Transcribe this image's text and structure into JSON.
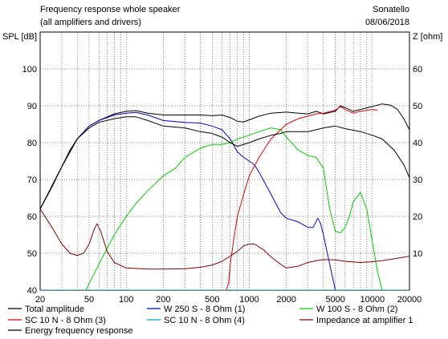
{
  "chart_data": {
    "type": "line",
    "title": "Frequency response whole speaker",
    "subtitle": "(all amplifiers and drivers)",
    "brand": "Sonatello",
    "date": "08/06/2018",
    "ylabel_left": "SPL [dB]",
    "ylabel_right": "Z [ohm]",
    "xscale": "log",
    "xlim": [
      20,
      20000
    ],
    "ylim_left": [
      40,
      110
    ],
    "ylim_right": [
      0,
      70
    ],
    "grid": true,
    "legend_placement": "bottom",
    "x_ticks": [
      20,
      50,
      100,
      200,
      500,
      1000,
      2000,
      5000,
      10000,
      20000
    ],
    "x_minor": [
      30,
      40,
      60,
      70,
      80,
      90,
      300,
      400,
      600,
      700,
      800,
      900,
      3000,
      4000,
      6000,
      7000,
      8000,
      9000
    ],
    "x_tick_labels": [
      "20",
      "50",
      "100",
      "200",
      "500",
      "1000",
      "2000",
      "5000",
      "10000",
      "20000"
    ],
    "y_ticks_left": [
      40,
      50,
      60,
      70,
      80,
      90,
      100
    ],
    "y_tick_labels_left": [
      "40",
      "50",
      "60",
      "70",
      "80",
      "90",
      "100"
    ],
    "y_ticks_right": [
      10,
      20,
      30,
      40,
      50,
      60
    ],
    "y_tick_labels_right": [
      "10",
      "20",
      "30",
      "40",
      "50",
      "60"
    ],
    "series": [
      {
        "name": "Total amplitude",
        "color": "#000000",
        "axis": "left",
        "points": [
          [
            20,
            62
          ],
          [
            25,
            68
          ],
          [
            30,
            73.5
          ],
          [
            35,
            78
          ],
          [
            40,
            81
          ],
          [
            50,
            84.5
          ],
          [
            60,
            86
          ],
          [
            70,
            87
          ],
          [
            80,
            87.8
          ],
          [
            100,
            88.5
          ],
          [
            120,
            88.7
          ],
          [
            150,
            88
          ],
          [
            200,
            87.5
          ],
          [
            300,
            87.5
          ],
          [
            400,
            87.5
          ],
          [
            500,
            87.3
          ],
          [
            600,
            87.5
          ],
          [
            700,
            86.8
          ],
          [
            800,
            85.8
          ],
          [
            900,
            85.6
          ],
          [
            1000,
            86.2
          ],
          [
            1200,
            87.2
          ],
          [
            1500,
            88
          ],
          [
            2000,
            88.3
          ],
          [
            2500,
            88
          ],
          [
            3000,
            87.8
          ],
          [
            3500,
            88.5
          ],
          [
            4000,
            87.8
          ],
          [
            5000,
            88.5
          ],
          [
            5500,
            90
          ],
          [
            6000,
            89.5
          ],
          [
            7000,
            88.5
          ],
          [
            8000,
            89
          ],
          [
            10000,
            89.8
          ],
          [
            12000,
            90.5
          ],
          [
            14000,
            90.2
          ],
          [
            16000,
            89
          ],
          [
            18000,
            86.5
          ],
          [
            20000,
            83.5
          ]
        ]
      },
      {
        "name": "W 250 S - 8 Ohm  (1)",
        "color": "#0000cc",
        "axis": "left",
        "points": [
          [
            20,
            62
          ],
          [
            30,
            73.5
          ],
          [
            40,
            81
          ],
          [
            50,
            84.5
          ],
          [
            60,
            86
          ],
          [
            80,
            87.5
          ],
          [
            100,
            88
          ],
          [
            120,
            88.2
          ],
          [
            150,
            87.5
          ],
          [
            200,
            86
          ],
          [
            300,
            85.5
          ],
          [
            400,
            85.3
          ],
          [
            500,
            84.5
          ],
          [
            600,
            83.5
          ],
          [
            700,
            81
          ],
          [
            800,
            77.5
          ],
          [
            900,
            76
          ],
          [
            1000,
            75
          ],
          [
            1100,
            74
          ],
          [
            1200,
            72
          ],
          [
            1500,
            66
          ],
          [
            1800,
            61
          ],
          [
            2000,
            59.5
          ],
          [
            2500,
            58.5
          ],
          [
            3000,
            57
          ],
          [
            3300,
            57
          ],
          [
            3600,
            59.5
          ],
          [
            3800,
            58
          ],
          [
            4000,
            55
          ],
          [
            4500,
            47
          ],
          [
            5000,
            40
          ]
        ]
      },
      {
        "name": "W 100 S - 8 Ohm (2)",
        "color": "#00cc00",
        "axis": "left",
        "points": [
          [
            47,
            40
          ],
          [
            60,
            47
          ],
          [
            80,
            55
          ],
          [
            100,
            60
          ],
          [
            120,
            63.5
          ],
          [
            150,
            67
          ],
          [
            200,
            71
          ],
          [
            250,
            73
          ],
          [
            300,
            76
          ],
          [
            400,
            78.5
          ],
          [
            500,
            79.5
          ],
          [
            600,
            79.5
          ],
          [
            700,
            80
          ],
          [
            800,
            81
          ],
          [
            1000,
            82
          ],
          [
            1200,
            83
          ],
          [
            1500,
            84
          ],
          [
            1800,
            83.5
          ],
          [
            2000,
            81.5
          ],
          [
            2500,
            78
          ],
          [
            3000,
            76.5
          ],
          [
            3500,
            76
          ],
          [
            4000,
            73
          ],
          [
            4500,
            62
          ],
          [
            5000,
            56
          ],
          [
            5500,
            55.5
          ],
          [
            6000,
            57
          ],
          [
            6500,
            60
          ],
          [
            7000,
            64
          ],
          [
            8000,
            66.5
          ],
          [
            9000,
            62
          ],
          [
            10000,
            53
          ],
          [
            11000,
            45
          ],
          [
            12000,
            40
          ]
        ]
      },
      {
        "name": "SC 10 N - 8 Ohm (3)",
        "color": "#dd0000",
        "axis": "left",
        "points": [
          [
            20,
            40
          ],
          [
            650,
            40
          ],
          [
            680,
            42
          ],
          [
            700,
            47
          ],
          [
            750,
            54
          ],
          [
            800,
            60
          ],
          [
            900,
            66
          ],
          [
            1000,
            71
          ],
          [
            1200,
            76
          ],
          [
            1500,
            81
          ],
          [
            1800,
            83.5
          ],
          [
            2000,
            85
          ],
          [
            2500,
            86.5
          ],
          [
            3000,
            87.2
          ],
          [
            3500,
            87.8
          ],
          [
            4000,
            88
          ],
          [
            5000,
            88.8
          ],
          [
            5500,
            89.8
          ],
          [
            6000,
            89
          ],
          [
            7000,
            88
          ],
          [
            8000,
            88.5
          ],
          [
            10000,
            89
          ],
          [
            11000,
            88.8
          ]
        ]
      },
      {
        "name": "SC 10 N - 8 Ohm (4)",
        "color": "#00aaaa",
        "axis": "left",
        "points": [
          [
            20,
            40
          ],
          [
            20000,
            40
          ]
        ]
      },
      {
        "name": "Impedance at amplifier 1",
        "color": "#800000",
        "axis": "right",
        "points": [
          [
            20,
            22
          ],
          [
            25,
            17
          ],
          [
            30,
            12.5
          ],
          [
            35,
            10
          ],
          [
            40,
            9.4
          ],
          [
            45,
            10
          ],
          [
            50,
            12.5
          ],
          [
            55,
            16.5
          ],
          [
            58,
            18
          ],
          [
            62,
            16
          ],
          [
            70,
            10.5
          ],
          [
            80,
            7.5
          ],
          [
            100,
            6
          ],
          [
            150,
            5.7
          ],
          [
            200,
            5.7
          ],
          [
            300,
            5.8
          ],
          [
            400,
            6.2
          ],
          [
            500,
            6.8
          ],
          [
            600,
            7.8
          ],
          [
            800,
            10.5
          ],
          [
            900,
            12
          ],
          [
            1000,
            12.5
          ],
          [
            1100,
            12.5
          ],
          [
            1300,
            11
          ],
          [
            1500,
            9
          ],
          [
            1800,
            7
          ],
          [
            2000,
            6
          ],
          [
            2500,
            6.5
          ],
          [
            3000,
            7.5
          ],
          [
            3500,
            8
          ],
          [
            4000,
            8.3
          ],
          [
            5000,
            8.2
          ],
          [
            6000,
            7.8
          ],
          [
            8000,
            7.5
          ],
          [
            10000,
            7.7
          ],
          [
            12000,
            8
          ],
          [
            15000,
            8.5
          ],
          [
            20000,
            9.2
          ]
        ]
      },
      {
        "name": "Energy frequency response",
        "color": "#000000",
        "axis": "left",
        "points": [
          [
            20,
            62
          ],
          [
            30,
            73.5
          ],
          [
            40,
            81
          ],
          [
            50,
            84
          ],
          [
            60,
            85.5
          ],
          [
            80,
            86.5
          ],
          [
            100,
            87
          ],
          [
            120,
            87
          ],
          [
            150,
            86
          ],
          [
            200,
            84.5
          ],
          [
            300,
            84
          ],
          [
            400,
            83
          ],
          [
            500,
            82.5
          ],
          [
            600,
            81.5
          ],
          [
            700,
            80
          ],
          [
            800,
            79
          ],
          [
            1000,
            80
          ],
          [
            1200,
            81
          ],
          [
            1500,
            82
          ],
          [
            1800,
            82.5
          ],
          [
            2000,
            83
          ],
          [
            2500,
            83
          ],
          [
            3000,
            83
          ],
          [
            3500,
            83.5
          ],
          [
            4000,
            84
          ],
          [
            5000,
            84.5
          ],
          [
            6000,
            83.8
          ],
          [
            8000,
            83
          ],
          [
            10000,
            82
          ],
          [
            12000,
            81
          ],
          [
            15000,
            78
          ],
          [
            18000,
            74
          ],
          [
            20000,
            70.5
          ]
        ]
      }
    ]
  }
}
